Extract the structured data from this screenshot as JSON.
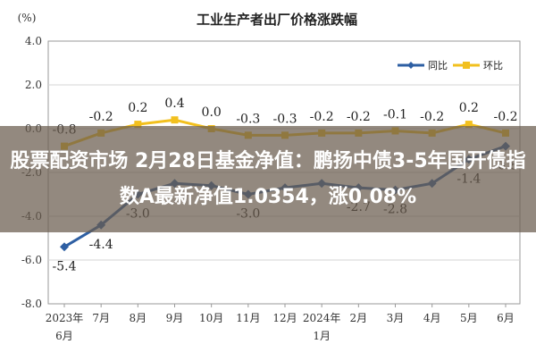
{
  "chart_data": {
    "type": "line",
    "title": "工业生产者出厂价格涨跌幅",
    "ylabel": "(%)",
    "ylim": [
      -8.0,
      4.0
    ],
    "yticks": [
      "4.0",
      "2.0",
      "0.0",
      "-2.0",
      "-4.0",
      "-6.0",
      "-8.0"
    ],
    "ytick_values": [
      4,
      2,
      0,
      -2,
      -4,
      -6,
      -8
    ],
    "grid": true,
    "legend": "top-right",
    "categories": [
      [
        "2023年",
        "6月"
      ],
      [
        "7月"
      ],
      [
        "8月"
      ],
      [
        "9月"
      ],
      [
        "10月"
      ],
      [
        "11月"
      ],
      [
        "12月"
      ],
      [
        "2024年",
        "1月"
      ],
      [
        "2月"
      ],
      [
        "3月"
      ],
      [
        "4月"
      ],
      [
        "5月"
      ],
      [
        "6月"
      ]
    ],
    "series": [
      {
        "name": "同比",
        "color": "#2e5fa3",
        "values": [
          -5.4,
          -4.4,
          -3.0,
          -2.5,
          -2.6,
          -3.0,
          -2.7,
          -2.5,
          -2.7,
          -2.8,
          -2.5,
          -1.4,
          -0.8
        ],
        "labels": [
          "-5.4",
          "-4.4",
          "-3.0",
          "",
          "",
          "-3.0",
          "",
          "",
          "-2.7",
          "-2.8",
          "",
          "-1.4",
          "-0.8"
        ]
      },
      {
        "name": "环比",
        "color": "#f2c01e",
        "values": [
          -0.8,
          -0.2,
          0.2,
          0.4,
          0.0,
          -0.3,
          -0.3,
          -0.2,
          -0.2,
          -0.1,
          -0.2,
          0.2,
          -0.2
        ],
        "labels": [
          "-0.8",
          "-0.2",
          "0.2",
          "0.4",
          "0.0",
          "-0.3",
          "-0.3",
          "-0.2",
          "-0.2",
          "-0.1",
          "-0.2",
          "0.2",
          "-0.2"
        ]
      }
    ]
  },
  "overlay": {
    "text": "股票配资市场 2月28日基金净值：鹏扬中债3-5年国开债指数A最新净值1.0354，涨0.08%"
  }
}
